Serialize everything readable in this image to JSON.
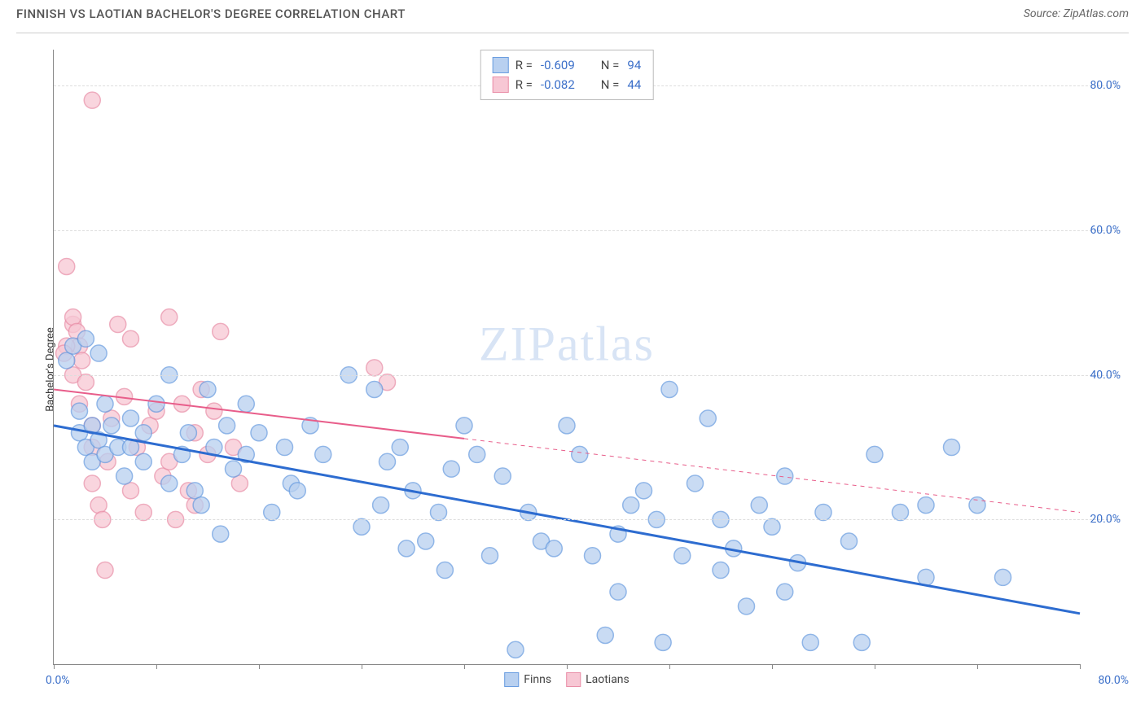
{
  "header": {
    "title": "FINNISH VS LAOTIAN BACHELOR'S DEGREE CORRELATION CHART",
    "source": "Source: ZipAtlas.com"
  },
  "chart": {
    "type": "scatter",
    "ylabel": "Bachelor's Degree",
    "watermark": {
      "zip": "ZIP",
      "atlas": "atlas"
    },
    "xlim": [
      0,
      80
    ],
    "ylim": [
      0,
      85
    ],
    "xtick_positions": [
      0,
      8,
      16,
      24,
      32,
      40,
      48,
      56,
      64,
      72,
      80
    ],
    "ytick_positions": [
      20,
      40,
      60,
      80
    ],
    "ytick_labels": [
      "20.0%",
      "40.0%",
      "60.0%",
      "80.0%"
    ],
    "xaxis_min_label": "0.0%",
    "xaxis_max_label": "80.0%",
    "gridline_color": "#dddddd",
    "axis_color": "#888888",
    "background_color": "#ffffff",
    "tick_label_color": "#3b6fc9",
    "series": [
      {
        "name": "Finns",
        "R": "-0.609",
        "N": "94",
        "marker_fill": "#b8d0f0",
        "marker_stroke": "#6a9de0",
        "marker_radius": 10,
        "marker_opacity": 0.75,
        "trend_color": "#2d6cd0",
        "trend_width": 3,
        "trend_solid_xmax": 80,
        "trend_y_at_x0": 33,
        "trend_y_at_xmax": 7,
        "points": [
          [
            1,
            42
          ],
          [
            1.5,
            44
          ],
          [
            2,
            32
          ],
          [
            2,
            35
          ],
          [
            2.5,
            30
          ],
          [
            2.5,
            45
          ],
          [
            3,
            28
          ],
          [
            3,
            33
          ],
          [
            3.5,
            31
          ],
          [
            3.5,
            43
          ],
          [
            4,
            29
          ],
          [
            4,
            36
          ],
          [
            4.5,
            33
          ],
          [
            5,
            30
          ],
          [
            5.5,
            26
          ],
          [
            6,
            30
          ],
          [
            6,
            34
          ],
          [
            7,
            28
          ],
          [
            7,
            32
          ],
          [
            8,
            36
          ],
          [
            9,
            40
          ],
          [
            9,
            25
          ],
          [
            10,
            29
          ],
          [
            10.5,
            32
          ],
          [
            11,
            24
          ],
          [
            11.5,
            22
          ],
          [
            12,
            38
          ],
          [
            12.5,
            30
          ],
          [
            13,
            18
          ],
          [
            13.5,
            33
          ],
          [
            14,
            27
          ],
          [
            15,
            36
          ],
          [
            15,
            29
          ],
          [
            16,
            32
          ],
          [
            17,
            21
          ],
          [
            18,
            30
          ],
          [
            18.5,
            25
          ],
          [
            19,
            24
          ],
          [
            20,
            33
          ],
          [
            21,
            29
          ],
          [
            23,
            40
          ],
          [
            24,
            19
          ],
          [
            25,
            38
          ],
          [
            25.5,
            22
          ],
          [
            26,
            28
          ],
          [
            27,
            30
          ],
          [
            27.5,
            16
          ],
          [
            28,
            24
          ],
          [
            29,
            17
          ],
          [
            30,
            21
          ],
          [
            30.5,
            13
          ],
          [
            31,
            27
          ],
          [
            32,
            33
          ],
          [
            33,
            29
          ],
          [
            34,
            15
          ],
          [
            35,
            26
          ],
          [
            36,
            2
          ],
          [
            37,
            21
          ],
          [
            38,
            17
          ],
          [
            39,
            16
          ],
          [
            40,
            33
          ],
          [
            41,
            29
          ],
          [
            42,
            15
          ],
          [
            43,
            4
          ],
          [
            44,
            18
          ],
          [
            45,
            22
          ],
          [
            46,
            24
          ],
          [
            47,
            20
          ],
          [
            47.5,
            3
          ],
          [
            48,
            38
          ],
          [
            49,
            15
          ],
          [
            50,
            25
          ],
          [
            51,
            34
          ],
          [
            52,
            20
          ],
          [
            53,
            16
          ],
          [
            54,
            8
          ],
          [
            55,
            22
          ],
          [
            56,
            19
          ],
          [
            57,
            26
          ],
          [
            58,
            14
          ],
          [
            59,
            3
          ],
          [
            60,
            21
          ],
          [
            62,
            17
          ],
          [
            63,
            3
          ],
          [
            64,
            29
          ],
          [
            66,
            21
          ],
          [
            68,
            22
          ],
          [
            70,
            30
          ],
          [
            72,
            22
          ],
          [
            74,
            12
          ],
          [
            68,
            12
          ],
          [
            57,
            10
          ],
          [
            52,
            13
          ],
          [
            44,
            10
          ]
        ]
      },
      {
        "name": "Laotians",
        "R": "-0.082",
        "N": "44",
        "marker_fill": "#f7c7d4",
        "marker_stroke": "#e98fa8",
        "marker_radius": 10,
        "marker_opacity": 0.75,
        "trend_color": "#e85d8a",
        "trend_width": 2,
        "trend_solid_xmax": 32,
        "trend_y_at_x0": 38,
        "trend_y_at_xmax": 21,
        "points": [
          [
            3,
            78
          ],
          [
            1,
            55
          ],
          [
            1.5,
            47
          ],
          [
            1.5,
            48
          ],
          [
            1.8,
            46
          ],
          [
            2,
            44
          ],
          [
            1,
            44
          ],
          [
            0.8,
            43
          ],
          [
            2.2,
            42
          ],
          [
            1.5,
            40
          ],
          [
            2.5,
            39
          ],
          [
            3,
            30
          ],
          [
            3,
            25
          ],
          [
            3.5,
            22
          ],
          [
            3.8,
            20
          ],
          [
            4,
            13
          ],
          [
            4.2,
            28
          ],
          [
            4.5,
            34
          ],
          [
            5,
            47
          ],
          [
            5.5,
            37
          ],
          [
            6,
            45
          ],
          [
            6,
            24
          ],
          [
            6.5,
            30
          ],
          [
            7,
            21
          ],
          [
            7.5,
            33
          ],
          [
            8,
            35
          ],
          [
            8.5,
            26
          ],
          [
            9,
            48
          ],
          [
            9.5,
            20
          ],
          [
            10,
            36
          ],
          [
            10.5,
            24
          ],
          [
            11,
            32
          ],
          [
            11,
            22
          ],
          [
            11.5,
            38
          ],
          [
            9,
            28
          ],
          [
            12,
            29
          ],
          [
            12.5,
            35
          ],
          [
            13,
            46
          ],
          [
            14,
            30
          ],
          [
            14.5,
            25
          ],
          [
            25,
            41
          ],
          [
            26,
            39
          ],
          [
            2,
            36
          ],
          [
            3,
            33
          ]
        ]
      }
    ],
    "legend_bottom": [
      {
        "label": "Finns",
        "seriesIndex": 0
      },
      {
        "label": "Laotians",
        "seriesIndex": 1
      }
    ]
  }
}
